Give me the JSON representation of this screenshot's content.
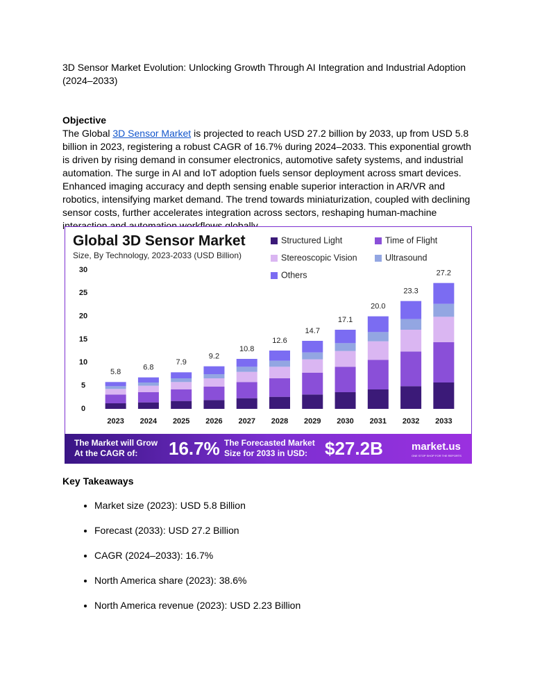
{
  "header": {
    "title": "3D Sensor Market Evolution: Unlocking Growth Through AI Integration and Industrial Adoption (2024–2033)"
  },
  "objective": {
    "heading": "Objective",
    "text_before": " The Global ",
    "link": "3D Sensor Market",
    "text_after": " is projected to reach USD 27.2 billion by 2033, up from USD 5.8 billion in 2023, registering a robust CAGR of 16.7% during 2024–2033. This exponential growth is driven by rising demand in consumer electronics, automotive safety systems, and industrial automation. The surge in AI and IoT adoption fuels sensor deployment across smart devices. Enhanced imaging accuracy and depth sensing enable superior interaction in AR/VR and robotics, intensifying market demand. The trend towards miniaturization, coupled with declining sensor costs, further accelerates integration across sectors, reshaping human-machine interaction and automation workflows globally."
  },
  "chart_data": {
    "type": "stacked_bar",
    "title": "Global 3D Sensor Market",
    "subtitle": "Size, By Technology, 2023-2033 (USD Billion)",
    "categories": [
      "2023",
      "2024",
      "2025",
      "2026",
      "2027",
      "2028",
      "2029",
      "2030",
      "2031",
      "2032",
      "2033"
    ],
    "series": [
      {
        "name": "Structured Light",
        "color": "#3b1a78",
        "values": [
          1.2,
          1.4,
          1.7,
          1.9,
          2.3,
          2.6,
          3.1,
          3.6,
          4.2,
          4.9,
          5.7
        ]
      },
      {
        "name": "Time of Flight",
        "color": "#8a4fd8",
        "values": [
          1.9,
          2.2,
          2.5,
          2.9,
          3.5,
          4.0,
          4.7,
          5.5,
          6.4,
          7.5,
          8.7
        ]
      },
      {
        "name": "Stereoscopic Vision",
        "color": "#dab6f2",
        "values": [
          1.2,
          1.4,
          1.6,
          1.8,
          2.2,
          2.5,
          2.9,
          3.4,
          4.0,
          4.7,
          5.5
        ]
      },
      {
        "name": "Ultrasound",
        "color": "#93a6e2",
        "values": [
          0.6,
          0.7,
          0.8,
          0.9,
          1.1,
          1.3,
          1.5,
          1.7,
          2.0,
          2.3,
          2.8
        ]
      },
      {
        "name": "Others",
        "color": "#7b6cf2",
        "values": [
          0.9,
          1.1,
          1.3,
          1.7,
          1.7,
          2.2,
          2.5,
          2.9,
          3.4,
          3.9,
          4.5
        ]
      }
    ],
    "totals": {
      "values": [
        5.8,
        6.8,
        7.9,
        9.2,
        10.8,
        12.6,
        14.7,
        17.1,
        20,
        23.3,
        27.2
      ],
      "value_labels": [
        "5.8",
        "6.8",
        "7.9",
        "9.2",
        "10.8",
        "12.6",
        "14.7",
        "17.1",
        "20.0",
        "23.3",
        "27.2"
      ]
    },
    "ylim": [
      0,
      30
    ],
    "yticks": [
      0,
      5,
      10,
      15,
      20,
      25,
      30
    ],
    "grid": false
  },
  "banner": {
    "cagr_text": [
      "The Market will Grow",
      "At the CAGR of:"
    ],
    "cagr_value": "16.7%",
    "forecast_text": [
      "The Forecasted Market",
      "Size for 2033 in USD:"
    ],
    "forecast_value": "$27.2B",
    "brand": "market.us",
    "tagline": "ONE STOP SHOP FOR THE REPORTS"
  },
  "key_takeaways": {
    "heading": "Key Takeaways",
    "items": [
      "Market size (2023): USD 5.8 Billion",
      "Forecast (2033): USD 27.2 Billion",
      "CAGR (2024–2033): 16.7%",
      "North America share (2023): 38.6%",
      "North America revenue (2023): USD 2.23 Billion"
    ]
  }
}
